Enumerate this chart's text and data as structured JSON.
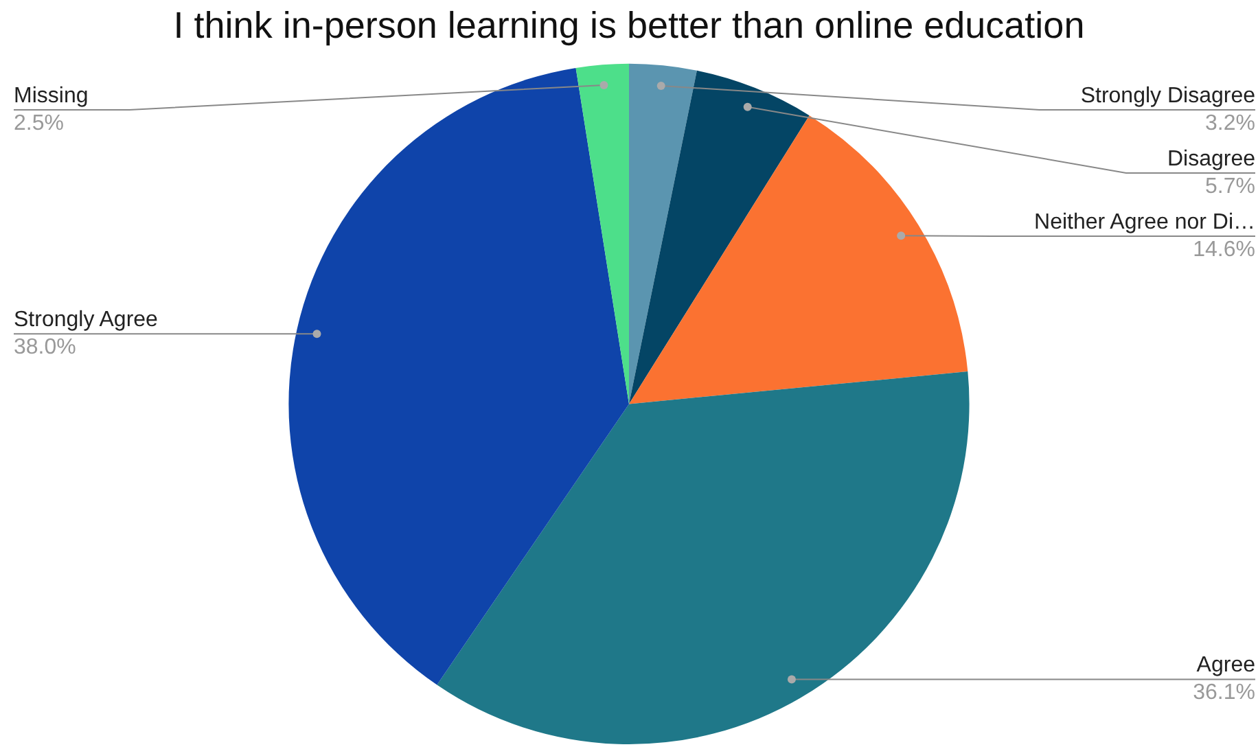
{
  "chart_data": {
    "type": "pie",
    "title": "I think in-person learning is better than online education",
    "categories": [
      "Strongly Disagree",
      "Disagree",
      "Neither Agree nor Di…",
      "Agree",
      "Strongly Agree",
      "Missing"
    ],
    "values": [
      3.2,
      5.7,
      14.6,
      36.1,
      38.0,
      2.5
    ],
    "colors": [
      "#5b95b0",
      "#044565",
      "#fb7231",
      "#1f7889",
      "#0f44aa",
      "#4ddf8a"
    ],
    "value_labels": [
      "3.2%",
      "5.7%",
      "14.6%",
      "36.1%",
      "38.0%",
      "2.5%"
    ],
    "legend": false
  }
}
